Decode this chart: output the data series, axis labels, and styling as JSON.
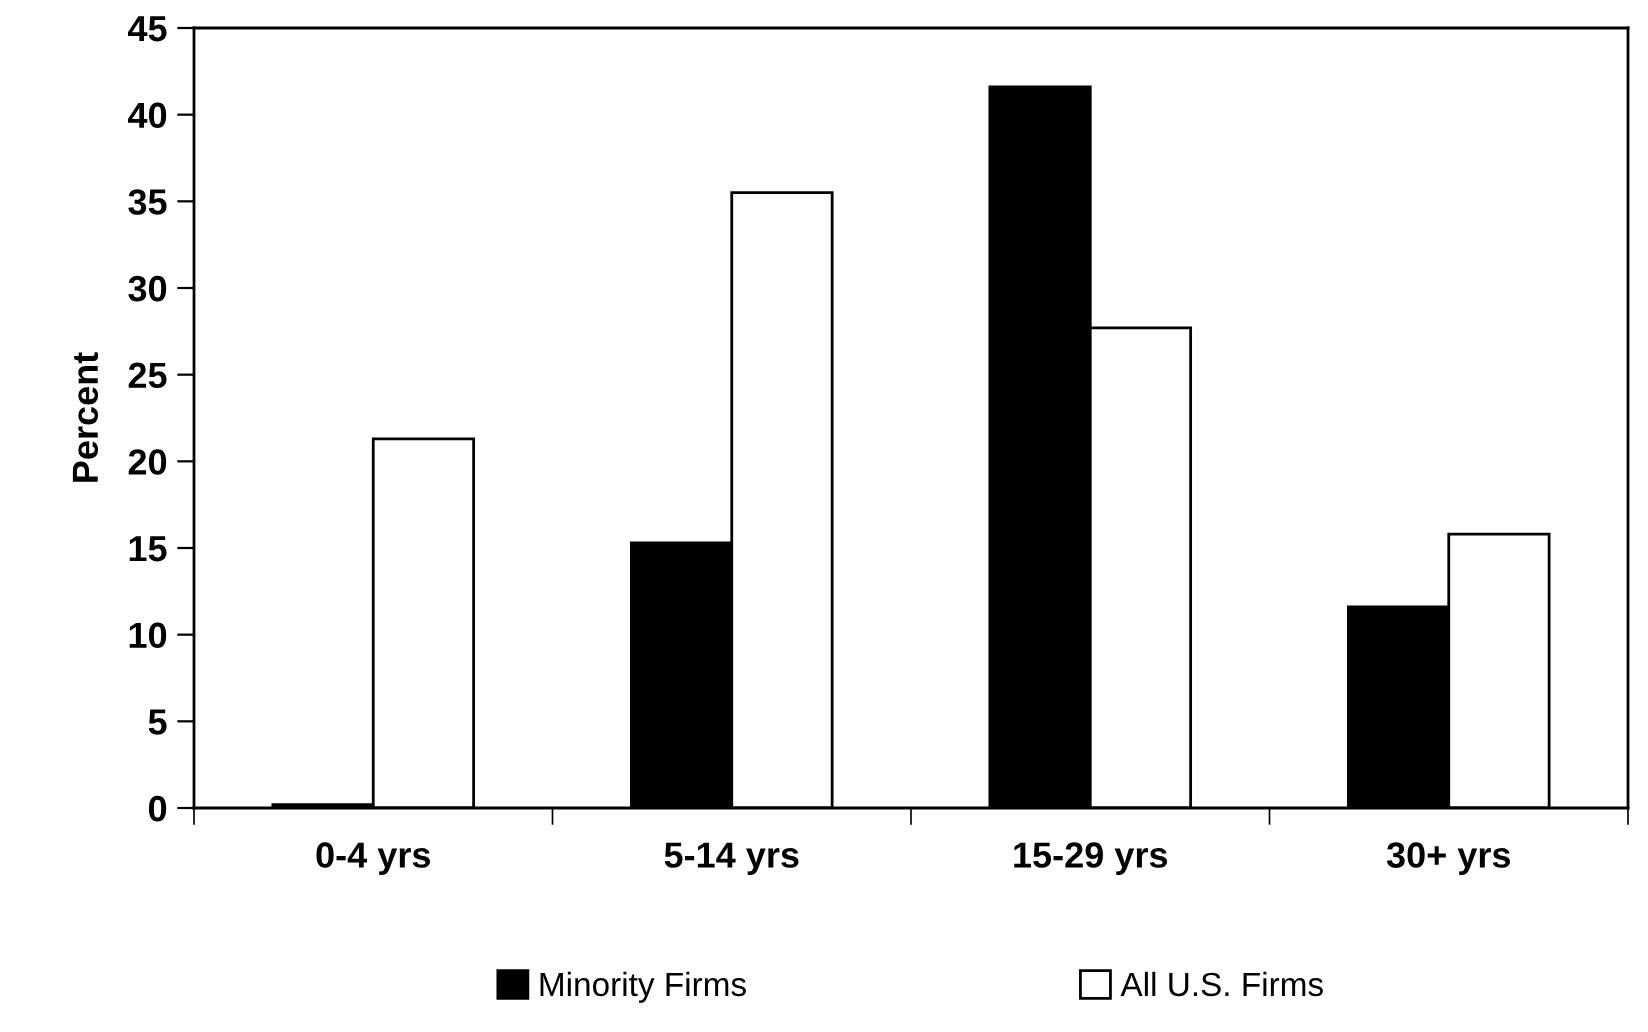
{
  "chart_data": {
    "type": "bar",
    "ylabel": "Percent",
    "categories": [
      "0-4 yrs",
      "5-14 yrs",
      "15-29 yrs",
      "30+ yrs"
    ],
    "series": [
      {
        "name": "Minority Firms",
        "color": "#000000",
        "values": [
          0.2,
          15.3,
          41.6,
          11.6
        ]
      },
      {
        "name": "All U.S. Firms",
        "color": "#ffffff",
        "values": [
          21.3,
          35.5,
          27.7,
          15.8
        ]
      }
    ],
    "ylim": [
      0,
      45
    ],
    "yticks": [
      0,
      5,
      10,
      15,
      20,
      25,
      30,
      35,
      40,
      45
    ],
    "grid": false,
    "legend": "bottom"
  }
}
